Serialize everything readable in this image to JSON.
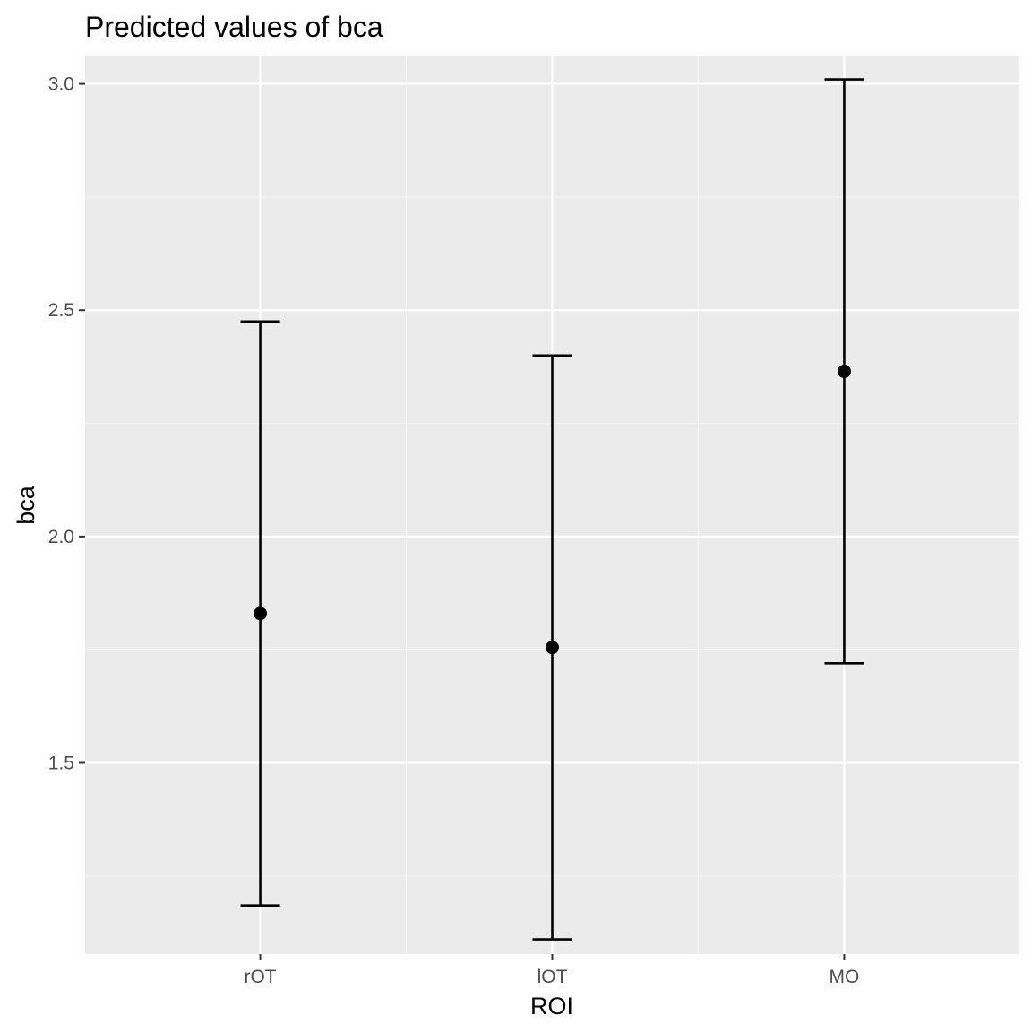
{
  "chart_data": {
    "type": "scatter",
    "title": "Predicted values of bca",
    "xlabel": "ROI",
    "ylabel": "bca",
    "categories": [
      "rOT",
      "lOT",
      "MO"
    ],
    "series": [
      {
        "values": [
          1.83,
          1.755,
          2.365
        ],
        "conf_low": [
          1.185,
          1.11,
          1.72
        ],
        "conf_high": [
          2.475,
          2.4,
          3.01
        ]
      }
    ],
    "y_ticks": [
      1.5,
      2.0,
      2.5,
      3.0
    ],
    "y_tick_labels": [
      "1.5",
      "2.0",
      "2.5",
      "3.0"
    ],
    "ylim": [
      1.0775,
      3.0625
    ],
    "grid": true,
    "legend": "none",
    "colors": {
      "panel_background": "#ebebeb",
      "grid_major": "#ffffff",
      "grid_minor": "#f5f5f5",
      "marks": "#000000",
      "tick_text": "#4d4d4d",
      "tick_mark": "#333333"
    }
  }
}
